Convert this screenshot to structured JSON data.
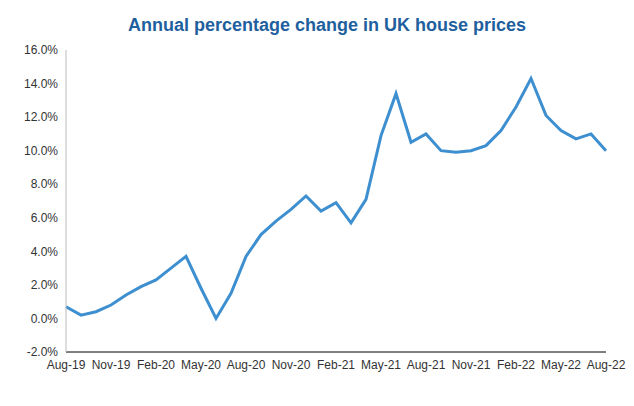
{
  "chart_data": {
    "type": "line",
    "title": "Annual percentage change in UK house prices",
    "categories": [
      "Aug-19",
      null,
      null,
      "Nov-19",
      null,
      null,
      "Feb-20",
      null,
      null,
      "May-20",
      null,
      null,
      "Aug-20",
      null,
      null,
      "Nov-20",
      null,
      null,
      "Feb-21",
      null,
      null,
      "May-21",
      null,
      null,
      "Aug-21",
      null,
      null,
      "Nov-21",
      null,
      null,
      "Feb-22",
      null,
      null,
      "May-22",
      null,
      null,
      "Aug-22"
    ],
    "values": [
      0.7,
      0.2,
      0.4,
      0.8,
      1.4,
      1.9,
      2.3,
      3.0,
      3.7,
      1.8,
      0.0,
      1.5,
      3.7,
      5.0,
      5.8,
      6.5,
      7.3,
      6.4,
      6.9,
      5.7,
      7.1,
      10.9,
      13.4,
      10.5,
      11.0,
      10.0,
      9.9,
      10.0,
      10.3,
      11.2,
      12.6,
      14.3,
      12.1,
      11.2,
      10.7,
      11.0,
      10.0
    ],
    "color": "#3d8fd0",
    "ylim": [
      -2,
      16
    ],
    "yticks": [
      {
        "value": -2,
        "label": "-2.0%"
      },
      {
        "value": 0,
        "label": "0.0%"
      },
      {
        "value": 2,
        "label": "2.0%"
      },
      {
        "value": 4,
        "label": "4.0%"
      },
      {
        "value": 6,
        "label": "6.0%"
      },
      {
        "value": 8,
        "label": "8.0%"
      },
      {
        "value": 10,
        "label": "10.0%"
      },
      {
        "value": 12,
        "label": "12.0%"
      },
      {
        "value": 14,
        "label": "14.0%"
      },
      {
        "value": 16,
        "label": "16.0%"
      }
    ],
    "grid": false
  }
}
